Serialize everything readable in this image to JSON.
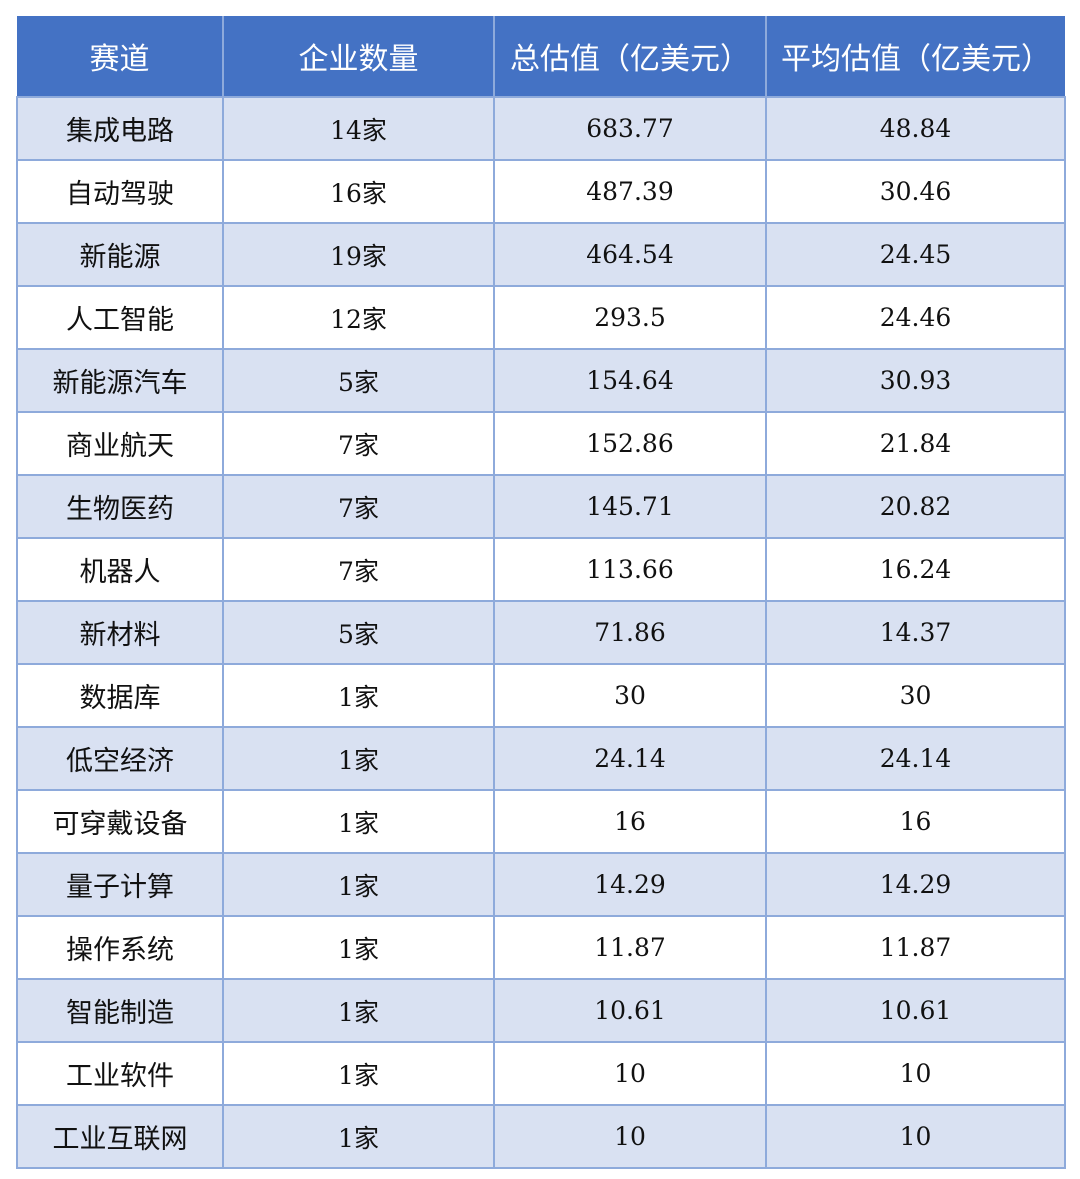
{
  "colors": {
    "header_bg": "#4472C4",
    "band_bg": "#D9E1F2",
    "border": "#8EAADB"
  },
  "headers": [
    "赛道",
    "企业数量",
    "总估值（亿美元）",
    "平均估值（亿美元）"
  ],
  "rows": [
    [
      "集成电路",
      "14家",
      "683.77",
      "48.84"
    ],
    [
      "自动驾驶",
      "16家",
      "487.39",
      "30.46"
    ],
    [
      "新能源",
      "19家",
      "464.54",
      "24.45"
    ],
    [
      "人工智能",
      "12家",
      "293.5",
      "24.46"
    ],
    [
      "新能源汽车",
      "5家",
      "154.64",
      "30.93"
    ],
    [
      "商业航天",
      "7家",
      "152.86",
      "21.84"
    ],
    [
      "生物医药",
      "7家",
      "145.71",
      "20.82"
    ],
    [
      "机器人",
      "7家",
      "113.66",
      "16.24"
    ],
    [
      "新材料",
      "5家",
      "71.86",
      "14.37"
    ],
    [
      "数据库",
      "1家",
      "30",
      "30"
    ],
    [
      "低空经济",
      "1家",
      "24.14",
      "24.14"
    ],
    [
      "可穿戴设备",
      "1家",
      "16",
      "16"
    ],
    [
      "量子计算",
      "1家",
      "14.29",
      "14.29"
    ],
    [
      "操作系统",
      "1家",
      "11.87",
      "11.87"
    ],
    [
      "智能制造",
      "1家",
      "10.61",
      "10.61"
    ],
    [
      "工业软件",
      "1家",
      "10",
      "10"
    ],
    [
      "工业互联网",
      "1家",
      "10",
      "10"
    ]
  ]
}
